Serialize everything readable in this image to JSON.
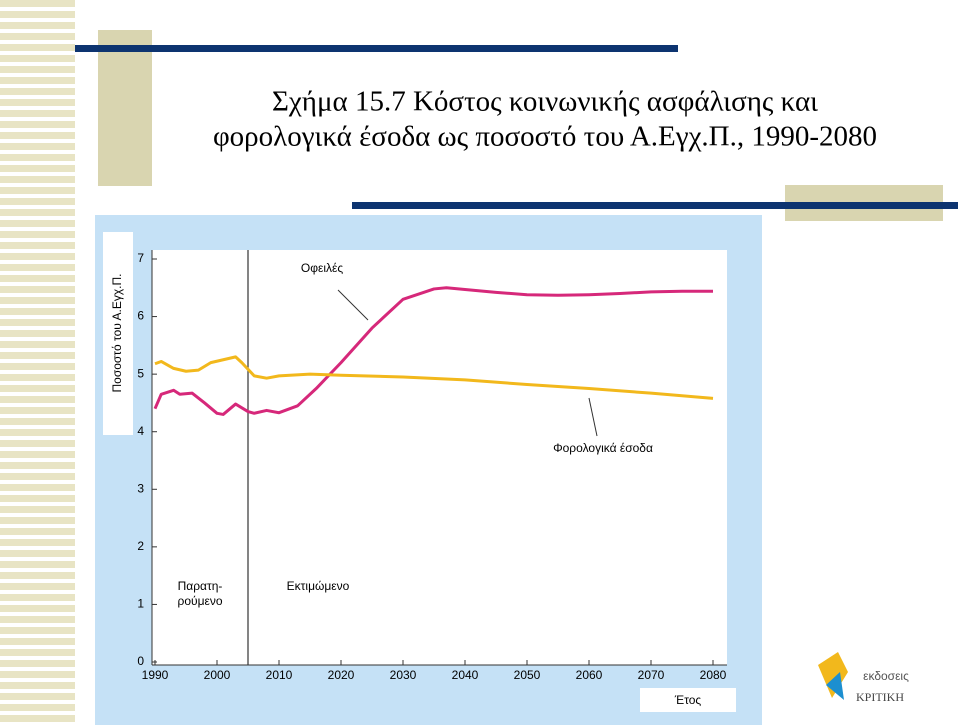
{
  "slide": {
    "title_lines": [
      "Σχήμα 15.7 Κόστος κοινωνικής ασφάλισης και",
      "φορολογικά έσοδα ως ποσοστό του Α.Εγχ.Π., 1990-2080"
    ]
  },
  "logo": {
    "small": "εκδοσεις",
    "big": "ΚΡΙΤΙΚΗ"
  },
  "chart_data": {
    "type": "line",
    "ylabel": "Ποσοστό του Α.Εγχ.Π.",
    "xlabel": "Έτος",
    "observed_label": [
      "Παρατη-",
      "ρούμενο"
    ],
    "projected_label": "Εκτιμώμενο",
    "divider_x": 2005,
    "xlim": [
      1990,
      2080
    ],
    "ylim": [
      0,
      7
    ],
    "xticks": [
      1990,
      2000,
      2010,
      2020,
      2030,
      2040,
      2050,
      2060,
      2070,
      2080
    ],
    "yticks": [
      0,
      1,
      2,
      3,
      4,
      5,
      6,
      7
    ],
    "series": [
      {
        "name": "Οφειλές",
        "color": "#d6287a",
        "x": [
          1990,
          1991,
          1993,
          1994,
          1996,
          1998,
          2000,
          2001,
          2003,
          2005,
          2006,
          2008,
          2010,
          2013,
          2016,
          2020,
          2025,
          2030,
          2035,
          2037,
          2040,
          2045,
          2050,
          2055,
          2060,
          2065,
          2070,
          2075,
          2080
        ],
        "values": [
          4.4,
          4.65,
          4.72,
          4.65,
          4.67,
          4.5,
          4.32,
          4.3,
          4.48,
          4.35,
          4.32,
          4.37,
          4.33,
          4.45,
          4.75,
          5.2,
          5.8,
          6.3,
          6.48,
          6.5,
          6.47,
          6.42,
          6.38,
          6.37,
          6.38,
          6.4,
          6.43,
          6.44,
          6.44
        ]
      },
      {
        "name": "Φορολογικά έσοδα",
        "color": "#f2b81c",
        "x": [
          1990,
          1991,
          1993,
          1995,
          1997,
          1999,
          2001,
          2003,
          2004,
          2006,
          2008,
          2010,
          2015,
          2020,
          2030,
          2040,
          2050,
          2060,
          2070,
          2080
        ],
        "values": [
          5.18,
          5.22,
          5.1,
          5.05,
          5.07,
          5.2,
          5.25,
          5.3,
          5.2,
          4.97,
          4.93,
          4.97,
          5.0,
          4.98,
          4.95,
          4.9,
          4.82,
          4.75,
          4.67,
          4.58
        ]
      }
    ]
  }
}
